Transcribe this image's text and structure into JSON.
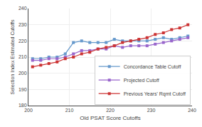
{
  "chart_data": {
    "type": "line",
    "xlabel": "Old PSAT Score Cutoffs",
    "ylabel": "Selection Index Estimated Cutoffs",
    "x": [
      201,
      203,
      205,
      207,
      209,
      211,
      213,
      215,
      217,
      219,
      221,
      223,
      225,
      227,
      229,
      231,
      233,
      235,
      237,
      239
    ],
    "series": [
      {
        "name": "Concordance Table Cutoff",
        "color": "#6699CC",
        "marker": "square",
        "values": [
          209,
          209,
          210,
          210,
          212,
          219,
          220,
          219,
          219,
          219,
          221,
          220,
          220,
          220,
          220,
          221,
          222,
          221,
          222,
          223
        ]
      },
      {
        "name": "Projected Cutoff",
        "color": "#9966CC",
        "marker": "square",
        "values": [
          208,
          208,
          209,
          209,
          210,
          212,
          214,
          214,
          215,
          215,
          217,
          216,
          217,
          217,
          217,
          218,
          219,
          220,
          221,
          222
        ]
      },
      {
        "name": "Previous Years' Rqmt Cutoff",
        "color": "#CC3333",
        "marker": "square",
        "values": [
          204,
          205,
          206,
          207,
          209,
          210,
          212,
          213,
          215,
          216,
          217,
          219,
          220,
          221,
          222,
          224,
          225,
          227,
          228,
          230
        ]
      }
    ],
    "xlim": [
      200,
      240
    ],
    "ylim": [
      180,
      240
    ],
    "xticks": [
      200,
      210,
      220,
      230,
      240
    ],
    "yticks": [
      180,
      190,
      200,
      210,
      220,
      230,
      240
    ],
    "grid": true,
    "legend": "lower right"
  }
}
